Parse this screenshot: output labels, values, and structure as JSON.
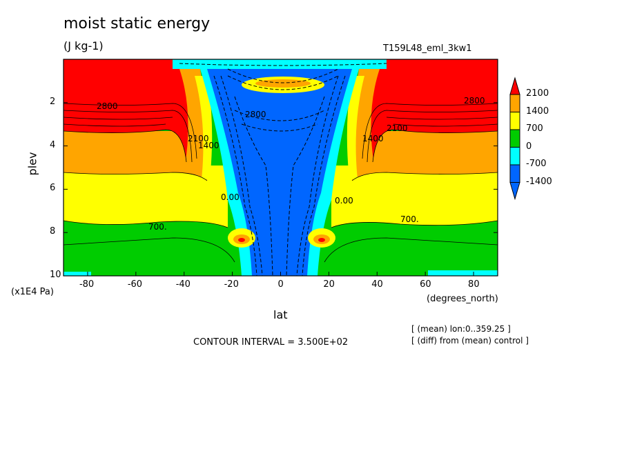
{
  "header": {
    "title": "moist static energy",
    "units": "(J kg-1)",
    "run_name": "T159L48_eml_3kw1"
  },
  "axes": {
    "ylabel": "plev",
    "yunit": "(x1E4 Pa)",
    "xlabel": "lat",
    "xunit": "(degrees_north)"
  },
  "footer": {
    "contour_interval": "CONTOUR INTERVAL = 3.500E+02",
    "note1": "[ (mean) lon:0..359.25 ]",
    "note2": "[ (diff) from (mean) control ]"
  },
  "colorbar": {
    "labels": [
      "2100",
      "1400",
      "700",
      "0",
      "-700",
      "-1400"
    ],
    "colors": [
      "#ff0000",
      "#ffa500",
      "#ffff00",
      "#00cc00",
      "#00ffff",
      "#0066ff"
    ]
  },
  "contour_labels": [
    "700.",
    "700.",
    "2800",
    "2800",
    "2100",
    "2100",
    "1400",
    "1400",
    "0.00",
    "0.00",
    "2800"
  ],
  "chart_data": {
    "type": "heatmap",
    "title": "moist static energy",
    "subtitle": "(J kg-1)",
    "xlabel": "lat",
    "ylabel": "plev",
    "x_ticks": [
      -80,
      -60,
      -40,
      -20,
      0,
      20,
      40,
      60,
      80
    ],
    "y_ticks": [
      2,
      4,
      6,
      8,
      10
    ],
    "xlim": [
      -90,
      90
    ],
    "ylim": [
      0,
      10
    ],
    "y_inverted": true,
    "levels": [
      -1400,
      -700,
      0,
      700,
      1400,
      2100
    ],
    "contour_interval": 350
  }
}
